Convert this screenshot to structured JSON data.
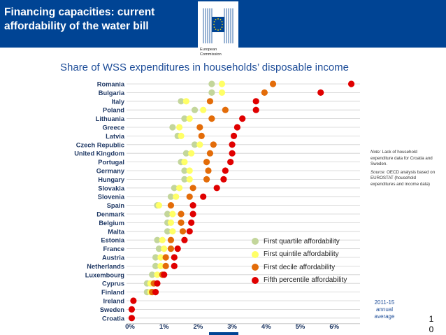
{
  "header": {
    "title_line1": "Financing capacities: current",
    "title_line2": "affordability of the water bill",
    "org_line1": "European",
    "org_line2": "Commission",
    "bg_color": "#004494"
  },
  "subtitle": "Share of WSS expenditures in households’ disposable income",
  "legend": [
    {
      "label": "First quartile affordability",
      "color": "#c3d69b"
    },
    {
      "label": "First quintile affordability",
      "color": "#ffff66"
    },
    {
      "label": "First decile affordability",
      "color": "#e36c09"
    },
    {
      "label": "Fifth percentile affordability",
      "color": "#e00000"
    }
  ],
  "note": {
    "label": "Note:",
    "text": "Lack of household expenditure data for Croatia and Sweden.",
    "source_label": "Source:",
    "source_text": "OECD analysis based on EUROSTAT (household expenditures and income data)"
  },
  "period": {
    "line1": "2011-15",
    "line2": "annual",
    "line3": "average"
  },
  "page_number": {
    "line1": "1",
    "line2": "0"
  },
  "chart_data": {
    "type": "scatter",
    "title": "Share of WSS expenditures in households’ disposable income",
    "xlabel": "",
    "ylabel": "",
    "xlim": [
      0,
      6.6
    ],
    "x_ticks": [
      "0%",
      "1%",
      "2%",
      "3%",
      "4%",
      "5%",
      "6%"
    ],
    "grid": true,
    "legend_position": "bottom-right",
    "categories": [
      "Romania",
      "Bulgaria",
      "Italy",
      "Poland",
      "Lithuania",
      "Greece",
      "Latvia",
      "Czech Republic",
      "United Kingdom",
      "Portugal",
      "Germany",
      "Hungary",
      "Slovakia",
      "Slovenia",
      "Spain",
      "Denmark",
      "Belgium",
      "Malta",
      "Estonia",
      "France",
      "Austria",
      "Netherlands",
      "Luxembourg",
      "Cyprus",
      "Finland",
      "Ireland",
      "Sweden",
      "Croatia"
    ],
    "series": [
      {
        "name": "First quartile affordability",
        "color": "#c3d69b",
        "values": [
          2.4,
          2.4,
          1.5,
          1.9,
          1.6,
          1.25,
          1.4,
          1.9,
          1.65,
          1.5,
          1.6,
          1.6,
          1.3,
          1.2,
          0.8,
          1.1,
          1.1,
          1.1,
          0.8,
          0.85,
          0.75,
          0.75,
          0.65,
          0.5,
          0.5,
          null,
          null,
          null
        ]
      },
      {
        "name": "First quintile affordability",
        "color": "#ffff66",
        "values": [
          2.7,
          2.7,
          1.65,
          2.15,
          1.75,
          1.45,
          1.5,
          2.05,
          1.8,
          1.6,
          1.75,
          1.75,
          1.45,
          1.35,
          0.85,
          1.25,
          1.2,
          1.25,
          0.95,
          1.0,
          0.9,
          0.9,
          0.8,
          0.6,
          0.6,
          null,
          null,
          null
        ]
      },
      {
        "name": "First decile affordability",
        "color": "#e36c09",
        "values": [
          4.2,
          3.95,
          2.35,
          2.8,
          2.4,
          2.05,
          2.1,
          2.45,
          2.35,
          2.25,
          2.3,
          2.25,
          1.85,
          1.75,
          1.2,
          1.5,
          1.5,
          1.55,
          1.2,
          1.2,
          1.05,
          1.05,
          0.95,
          0.7,
          0.65,
          null,
          null,
          null
        ]
      },
      {
        "name": "Fifth percentile affordability",
        "color": "#e00000",
        "values": [
          6.5,
          5.6,
          3.7,
          3.7,
          3.3,
          3.15,
          3.05,
          3.0,
          3.0,
          2.95,
          2.8,
          2.75,
          2.55,
          2.15,
          1.85,
          1.85,
          1.8,
          1.75,
          1.6,
          1.4,
          1.3,
          1.3,
          1.0,
          0.8,
          0.75,
          0.1,
          0.05,
          0.05
        ]
      }
    ]
  }
}
